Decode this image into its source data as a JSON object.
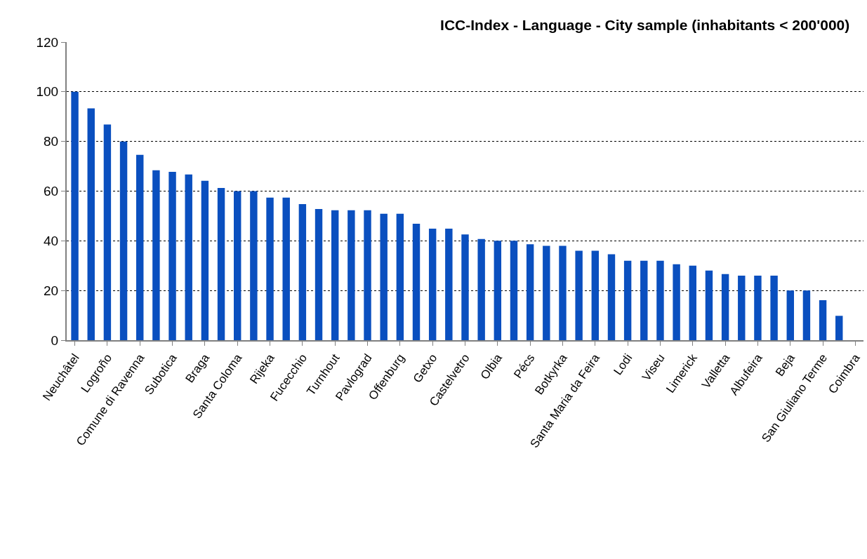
{
  "chart_data": {
    "type": "bar",
    "title": "ICC-Index - Language - City sample (inhabitants < 200'000)",
    "categories": [
      "Neuchâtel",
      null,
      "Logroño",
      null,
      "Comune di Ravenna",
      null,
      "Subotica",
      null,
      "Braga",
      null,
      "Santa Coloma",
      null,
      "Rijeka",
      null,
      "Fucecchio",
      null,
      "Turnhout",
      null,
      "Pavlograd",
      null,
      "Offenburg",
      null,
      "Getxo",
      null,
      "Castelvetro",
      null,
      "Olbia",
      null,
      "Pécs",
      null,
      "Botkyrka",
      null,
      "Santa Maria da Feira",
      null,
      "Lodi",
      null,
      "Viseu",
      null,
      "Limerick",
      null,
      "Valletta",
      null,
      "Albufeira",
      null,
      "Beja",
      null,
      "San Giuliano Terme",
      null,
      "Coimbra"
    ],
    "values": [
      100,
      93.3,
      86.8,
      80,
      74.6,
      68.4,
      67.8,
      66.7,
      64.2,
      61.3,
      60,
      60,
      57.4,
      57.4,
      54.8,
      52.8,
      52.3,
      52.3,
      52.3,
      50.9,
      50.9,
      46.9,
      44.9,
      44.9,
      42.6,
      40.7,
      40,
      40,
      38.6,
      38,
      38,
      36,
      36,
      34.6,
      32,
      32,
      32,
      30.6,
      30,
      28,
      26.6,
      26,
      26,
      26,
      20,
      20,
      16.1,
      9.8,
      null
    ],
    "color": "#0a4fbf",
    "ylim": [
      0,
      120
    ],
    "yticks": [
      0,
      20,
      40,
      60,
      80,
      100,
      120
    ],
    "grid": "y",
    "legend": false
  }
}
